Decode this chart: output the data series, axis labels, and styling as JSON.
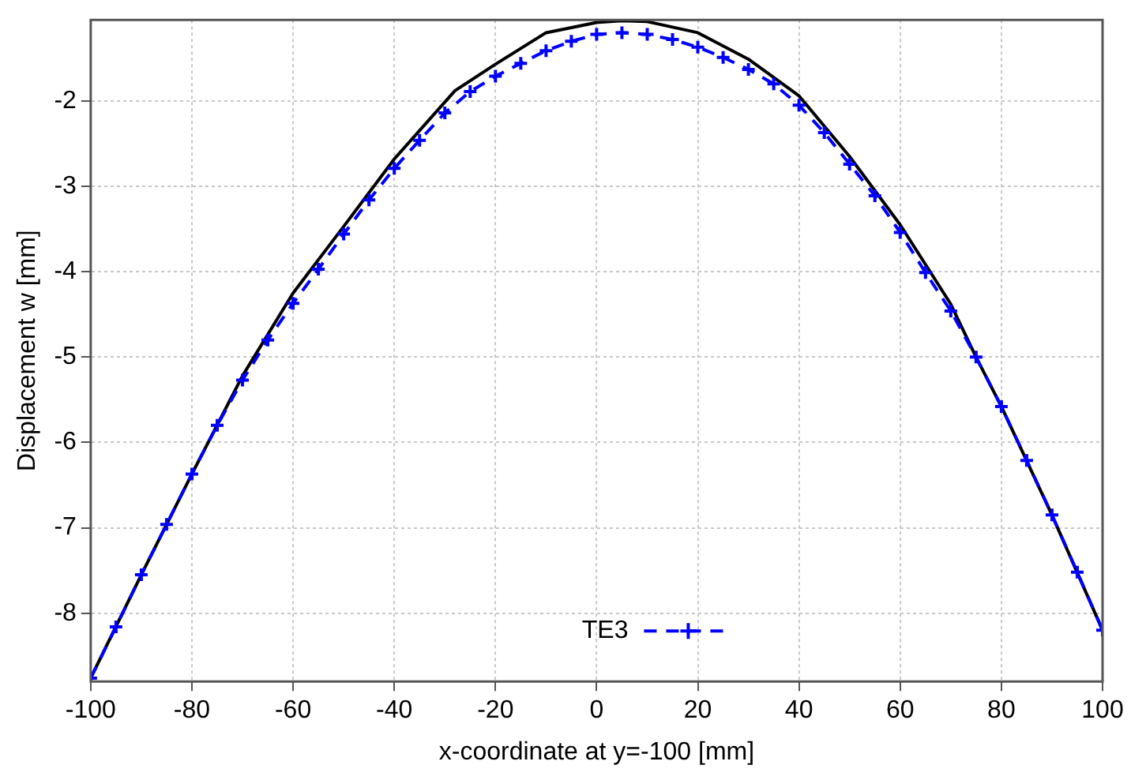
{
  "chart_data": {
    "type": "line",
    "xlabel": "x-coordinate at y=-100 [mm]",
    "ylabel": "Displacement w [mm]",
    "xlim": [
      -100,
      100
    ],
    "xticks": [
      -100,
      -80,
      -60,
      -40,
      -20,
      0,
      20,
      40,
      60,
      80,
      100
    ],
    "ylim": [
      -8.8,
      -1.05
    ],
    "yticks": [
      -8,
      -7,
      -6,
      -5,
      -4,
      -3,
      -2
    ],
    "grid": true,
    "legend": "bottom",
    "series": [
      {
        "name": "TE3",
        "color": "#0000ff",
        "marker": "cross",
        "line_style": "dashed",
        "x": [
          -100,
          -95,
          -90,
          -85,
          -80,
          -75,
          -70,
          -65,
          -60,
          -55,
          -50,
          -45,
          -40,
          -35,
          -30,
          -25,
          -20,
          -15,
          -10,
          -5,
          0,
          5,
          10,
          15,
          20,
          25,
          30,
          35,
          40,
          45,
          50,
          55,
          60,
          65,
          70,
          75,
          80,
          85,
          90,
          95,
          100
        ],
        "values": [
          -8.76,
          -8.16,
          -7.55,
          -6.96,
          -6.37,
          -5.8,
          -5.27,
          -4.8,
          -4.37,
          -3.97,
          -3.56,
          -3.16,
          -2.79,
          -2.46,
          -2.14,
          -1.89,
          -1.71,
          -1.56,
          -1.41,
          -1.3,
          -1.22,
          -1.2,
          -1.22,
          -1.28,
          -1.37,
          -1.49,
          -1.63,
          -1.8,
          -2.05,
          -2.37,
          -2.74,
          -3.11,
          -3.54,
          -4.01,
          -4.46,
          -5.0,
          -5.58,
          -6.21,
          -6.85,
          -7.52,
          -8.2
        ]
      },
      {
        "color": "#000000",
        "marker": "none",
        "line_style": "solid",
        "x": [
          -100,
          -90,
          -80,
          -70,
          -60,
          -50,
          -40,
          -28,
          -20,
          -10,
          0,
          5,
          10,
          20,
          30,
          40,
          50,
          60,
          70,
          75,
          80,
          90,
          100
        ],
        "values": [
          -8.76,
          -7.55,
          -6.37,
          -5.22,
          -4.25,
          -3.47,
          -2.68,
          -1.88,
          -1.57,
          -1.2,
          -1.08,
          -1.06,
          -1.07,
          -1.2,
          -1.51,
          -1.94,
          -2.65,
          -3.45,
          -4.38,
          -5.0,
          -5.58,
          -6.85,
          -8.2
        ]
      }
    ]
  }
}
